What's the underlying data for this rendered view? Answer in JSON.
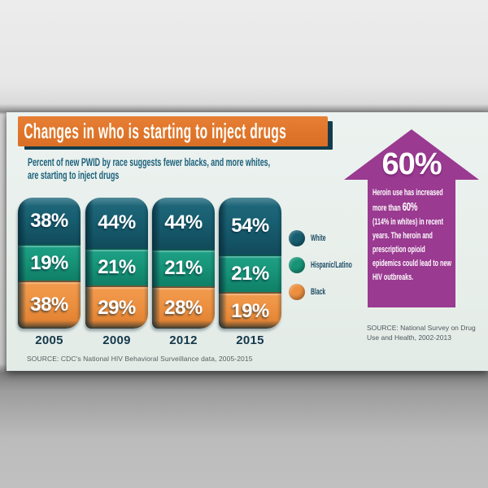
{
  "page": {
    "title": "Changes in who is starting to inject drugs",
    "subtitle_line1": "Percent of new PWID by race suggests fewer blacks, and more whites,",
    "subtitle_line2": "are starting to inject drugs",
    "source_left": "SOURCE: CDC's National HIV Behavioral Surveillance data, 2005-2015",
    "source_right_line1": "SOURCE: National Survey on Drug",
    "source_right_line2": "Use and Health, 2002-2013"
  },
  "callout": {
    "headline": "60%",
    "body_before": "Heroin use has increased more than",
    "body_big": "60%",
    "body_after": "(114% in whites) in recent years. The heroin and prescription opioid epidemics could lead to new HIV outbreaks.",
    "arrow_color": "#9a3a91"
  },
  "legend": {
    "items": [
      {
        "label": "White",
        "color": "#175e70"
      },
      {
        "label": "Hispanic/Latino",
        "color": "#179478"
      },
      {
        "label": "Black",
        "color": "#ec9040"
      }
    ]
  },
  "chart_data": {
    "type": "bar",
    "stacked": true,
    "orientation": "vertical",
    "title": "Changes in who is starting to inject drugs",
    "subtitle": "Percent of new PWID by race suggests fewer blacks, and more whites, are starting to inject drugs",
    "categories": [
      "2005",
      "2009",
      "2012",
      "2015"
    ],
    "series": [
      {
        "name": "White",
        "color": "#175e70",
        "color_light": "#20697c",
        "color_dark": "#114b5b",
        "values": [
          38,
          44,
          44,
          54
        ]
      },
      {
        "name": "Hispanic/Latino",
        "color": "#179478",
        "color_light": "#1ea186",
        "color_dark": "#0f7f66",
        "values": [
          19,
          21,
          21,
          21
        ]
      },
      {
        "name": "Black",
        "color": "#ec9040",
        "color_light": "#f29b4e",
        "color_dark": "#de7e2d",
        "values": [
          38,
          29,
          28,
          19
        ]
      }
    ],
    "value_suffix": "%",
    "legend_position": "right"
  },
  "colors": {
    "banner": "#e0752a",
    "banner_shadow": "#123c4b",
    "card_bg": "#e8efeb",
    "subtitle_text": "#1a607b",
    "year_text": "#14384a",
    "source_text": "#57605f"
  }
}
